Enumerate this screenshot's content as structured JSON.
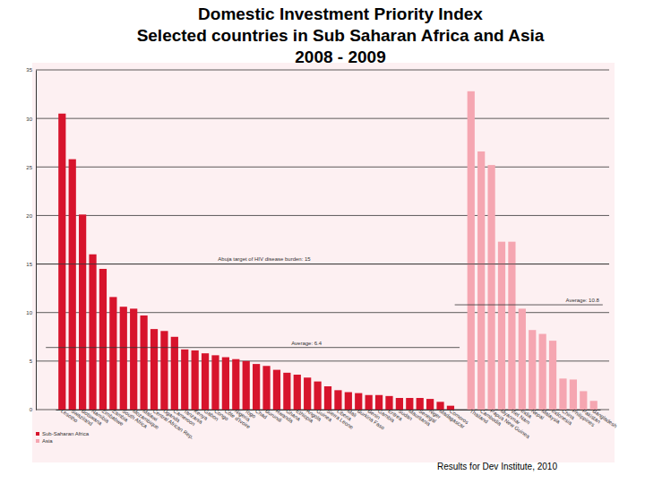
{
  "chart_data": {
    "type": "bar",
    "title": "Domestic Investment Priority Index\nSelected countries in Sub Saharan Africa and Asia\n2008 - 2009",
    "source": "Results for Dev Institute, 2010",
    "categories": [
      "Lesotho",
      "Swaziland",
      "Botswana",
      "Namibia",
      "Zimbabwe",
      "Zambia",
      "South Africa",
      "Mozambique",
      "Malawi",
      "Central African Rep.",
      "Uganda",
      "Cameroon",
      "Tanzania",
      "Kenya",
      "Gabon",
      "Congo",
      "Côte d'Ivoire",
      "Nigeria",
      "Togo",
      "Chad",
      "Burundi",
      "Rwanda",
      "Ghana",
      "Ethiopia",
      "Angola",
      "Guinea",
      "Sierra Leone",
      "Liberia",
      "Mali",
      "Burkina Faso",
      "Benin",
      "Gambia",
      "Eritrea",
      "Sudan",
      "Mauritania",
      "Senegal",
      "Niger",
      "Madagascar",
      "Comoros",
      null,
      "Thailand",
      "Cambodia",
      "Papua New Guinea",
      "Myanmar",
      "Viet Nam",
      "India",
      "Nepal",
      "Malaysia",
      "Indonesia",
      "China",
      "Philippines",
      "Pakistan",
      "Bangladesh"
    ],
    "series": [
      {
        "name": "Sub-Saharan Africa",
        "color": "#d7142c",
        "values": [
          30.5,
          25.8,
          20.1,
          16.0,
          14.5,
          11.6,
          10.6,
          10.4,
          9.7,
          8.3,
          8.1,
          7.5,
          6.2,
          6.1,
          5.8,
          5.6,
          5.4,
          5.2,
          5.0,
          4.7,
          4.5,
          4.1,
          3.8,
          3.6,
          3.3,
          2.9,
          2.4,
          2.0,
          1.8,
          1.7,
          1.5,
          1.5,
          1.4,
          1.2,
          1.2,
          1.2,
          1.1,
          0.8,
          0.4,
          null,
          null,
          null,
          null,
          null,
          null,
          null,
          null,
          null,
          null,
          null,
          null,
          null,
          null
        ]
      },
      {
        "name": "Asia",
        "color": "#f5a6b1",
        "values": [
          null,
          null,
          null,
          null,
          null,
          null,
          null,
          null,
          null,
          null,
          null,
          null,
          null,
          null,
          null,
          null,
          null,
          null,
          null,
          null,
          null,
          null,
          null,
          null,
          null,
          null,
          null,
          null,
          null,
          null,
          null,
          null,
          null,
          null,
          null,
          null,
          null,
          null,
          null,
          null,
          32.8,
          26.6,
          25.2,
          17.3,
          17.3,
          10.4,
          8.2,
          7.8,
          7.1,
          3.2,
          3.1,
          1.9,
          0.9
        ]
      }
    ],
    "annotations": [
      {
        "text": "Abuja target of HIV disease burden: 15",
        "value": 15
      },
      {
        "text": "Average: 10.8",
        "value": 10.8,
        "series": "Asia"
      },
      {
        "text": "Average: 6.4",
        "value": 6.4,
        "series": "Sub-Saharan Africa"
      }
    ],
    "ylim": [
      0,
      35
    ],
    "yticks": [
      0,
      5,
      10,
      15,
      20,
      25,
      30,
      35
    ],
    "grid": true,
    "legend": "bottom-left"
  }
}
